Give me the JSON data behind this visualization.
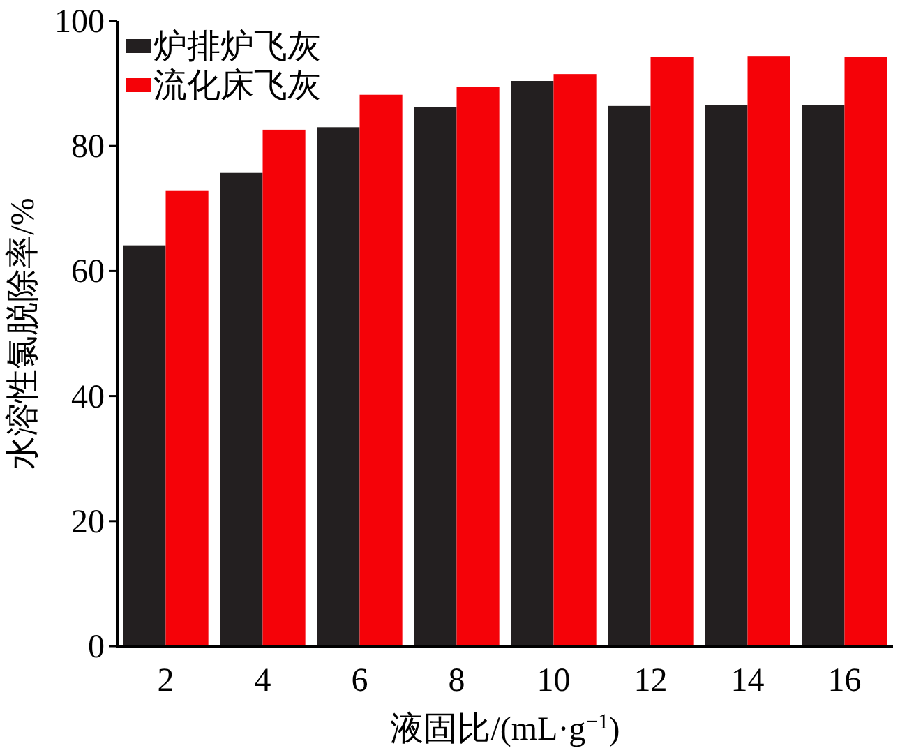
{
  "chart_data": {
    "type": "bar",
    "xlabel": "液固比/(mL·g$^{−1}$)",
    "ylabel": "水溶性氯脱除率/%",
    "categories": [
      "2",
      "4",
      "6",
      "8",
      "10",
      "12",
      "14",
      "16"
    ],
    "series": [
      {
        "name": "炉排炉飞灰",
        "color": "#231f20",
        "values": [
          64.1,
          75.7,
          83,
          86.2,
          90.4,
          86.4,
          86.6,
          86.6
        ]
      },
      {
        "name": "流化床飞灰",
        "color": "#f50208",
        "values": [
          72.8,
          82.6,
          88.2,
          89.5,
          91.5,
          94.2,
          94.4,
          94.2
        ]
      }
    ],
    "ylim": [
      0,
      100
    ],
    "yticks": [
      0,
      20,
      40,
      60,
      80,
      100
    ],
    "grid": false,
    "legend": "top left"
  }
}
